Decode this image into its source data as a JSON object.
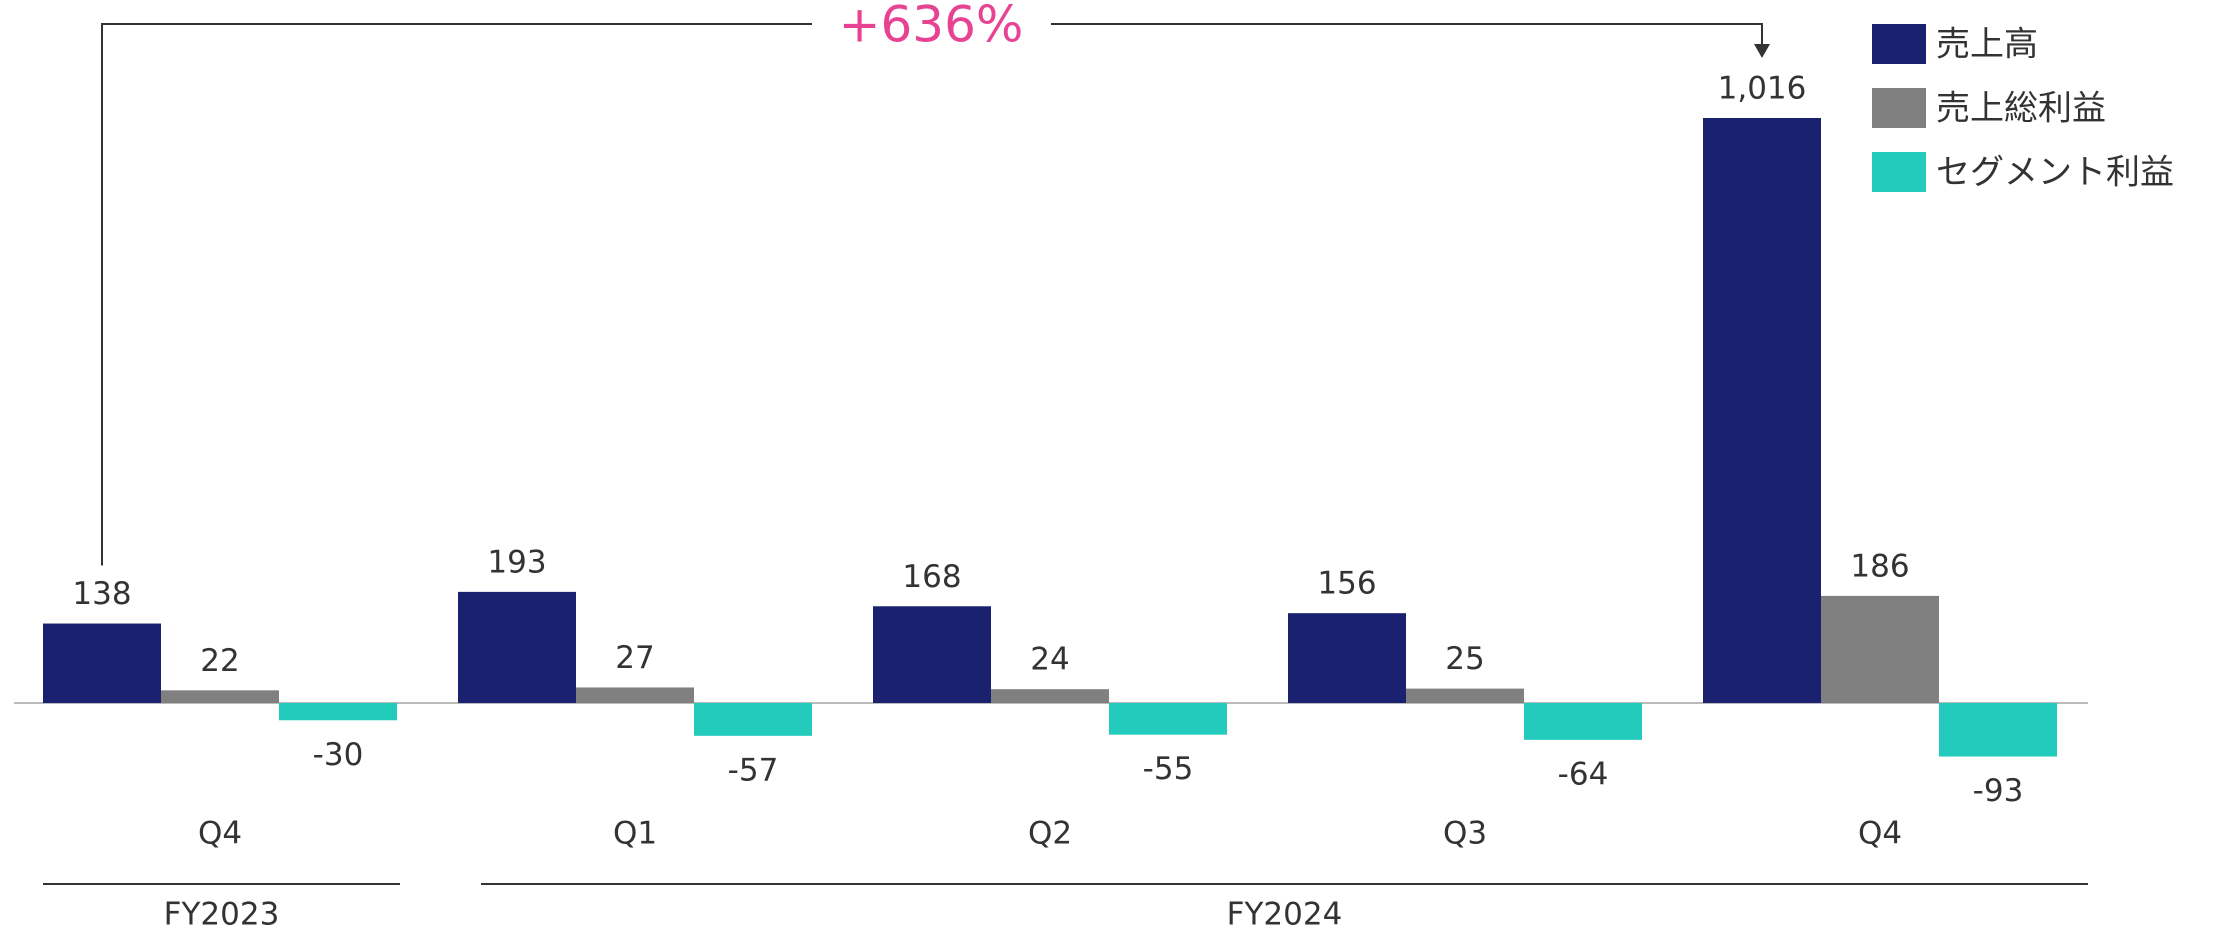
{
  "chart_data": {
    "type": "bar",
    "annotation": "+636%",
    "categories": [
      "Q4",
      "Q1",
      "Q2",
      "Q3",
      "Q4"
    ],
    "groups": [
      {
        "label": "FY2023",
        "size": 1
      },
      {
        "label": "FY2024",
        "size": 4
      }
    ],
    "series": [
      {
        "name": "売上高",
        "color": "#1a2270",
        "values": [
          138,
          193,
          168,
          156,
          1016
        ],
        "value_labels": [
          "138",
          "193",
          "168",
          "156",
          "1,016"
        ]
      },
      {
        "name": "売上総利益",
        "color": "#808080",
        "values": [
          22,
          27,
          24,
          25,
          186
        ]
      },
      {
        "name": "セグメント利益",
        "color": "#22cbbb",
        "values": [
          -30,
          -57,
          -55,
          -64,
          -93
        ]
      }
    ],
    "legend": "upper right"
  }
}
